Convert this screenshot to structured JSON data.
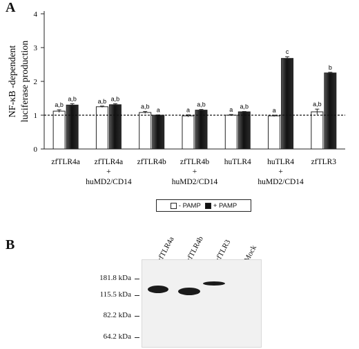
{
  "panels": {
    "a_letter": "A",
    "b_letter": "B"
  },
  "chart_data": {
    "type": "bar",
    "title": "",
    "ylabel_line1": "NF-κB -dependent",
    "ylabel_line2": "luciferase production",
    "ylim": [
      0,
      4
    ],
    "yticks": [
      "0",
      "1",
      "2",
      "3",
      "4"
    ],
    "reference_line": 1,
    "categories": [
      {
        "line1": "zfTLR4a",
        "line2": "",
        "line3": ""
      },
      {
        "line1": "zfTLR4a",
        "line2": "+",
        "line3": "huMD2/CD14"
      },
      {
        "line1": "zfTLR4b",
        "line2": "",
        "line3": ""
      },
      {
        "line1": "zfTLR4b",
        "line2": "+",
        "line3": "huMD2/CD14"
      },
      {
        "line1": "huTLR4",
        "line2": "",
        "line3": ""
      },
      {
        "line1": "huTLR4",
        "line2": "+",
        "line3": "huMD2/CD14"
      },
      {
        "line1": "zfTLR3",
        "line2": "",
        "line3": ""
      }
    ],
    "series": [
      {
        "name": "- PAMP",
        "color": "#ffffff",
        "values": [
          1.12,
          1.25,
          1.08,
          0.98,
          1.0,
          0.98,
          1.1
        ],
        "errors": [
          0.04,
          0.02,
          0.03,
          0.03,
          0.02,
          0.02,
          0.08
        ],
        "labels": [
          "a,b",
          "a,b",
          "a,b",
          "a",
          "a",
          "a",
          "a,b"
        ]
      },
      {
        "name": "+ PAMP",
        "color": "#111111",
        "values": [
          1.3,
          1.31,
          1.0,
          1.15,
          1.1,
          2.68,
          2.25
        ],
        "errors": [
          0.04,
          0.03,
          0.01,
          0.02,
          0.01,
          0.05,
          0.02
        ],
        "labels": [
          "a,b",
          "a,b",
          "a",
          "a,b",
          "a,b",
          "c",
          "b"
        ]
      }
    ],
    "legend": {
      "position": "bottom-center",
      "items": [
        "- PAMP",
        "+ PAMP"
      ]
    }
  },
  "blot": {
    "lanes": [
      "zfTLR4a",
      "zfTLR4b",
      "zfTLR3",
      "Mock"
    ],
    "markers": [
      "181.8 kDa",
      "115.5 kDa",
      "82.2 kDa",
      "64.2 kDa"
    ]
  }
}
